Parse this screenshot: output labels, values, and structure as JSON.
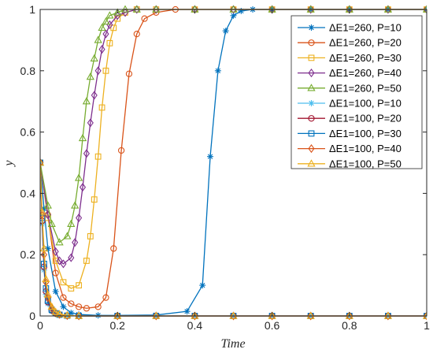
{
  "chart_data": {
    "type": "line",
    "xlabel": "Time",
    "ylabel": "y",
    "xlim": [
      0,
      1
    ],
    "ylim": [
      0,
      1
    ],
    "xticks": [
      0,
      0.2,
      0.4,
      0.6,
      0.8,
      1
    ],
    "xtick_labels": [
      "0",
      "0.2",
      "0.4",
      "0.6",
      "0.8",
      "1"
    ],
    "yticks": [
      0,
      0.2,
      0.4,
      0.6,
      0.8,
      1
    ],
    "ytick_labels": [
      "0",
      "0.2",
      "0.4",
      "0.6",
      "0.8",
      "1"
    ],
    "grid": false,
    "legend_position": "top-right",
    "series": [
      {
        "name": "ΔE1=260, P=10",
        "color": "#0072BD",
        "marker": "asterisk",
        "x": [
          0,
          0.01,
          0.02,
          0.04,
          0.06,
          0.08,
          0.1,
          0.15,
          0.2,
          0.3,
          0.38,
          0.42,
          0.44,
          0.46,
          0.48,
          0.5,
          0.52,
          0.55,
          0.6,
          0.7,
          0.8,
          0.9,
          1.0
        ],
        "y": [
          0.5,
          0.35,
          0.22,
          0.08,
          0.03,
          0.01,
          0.005,
          0.002,
          0.002,
          0.003,
          0.015,
          0.1,
          0.52,
          0.8,
          0.93,
          0.98,
          0.995,
          1,
          1,
          1,
          1,
          1,
          1
        ]
      },
      {
        "name": "ΔE1=260, P=20",
        "color": "#D95319",
        "marker": "circle",
        "x": [
          0,
          0.02,
          0.04,
          0.06,
          0.08,
          0.1,
          0.12,
          0.15,
          0.17,
          0.19,
          0.21,
          0.23,
          0.25,
          0.27,
          0.3,
          0.35,
          0.4,
          0.5,
          0.6,
          0.7,
          0.8,
          0.9,
          1.0
        ],
        "y": [
          0.5,
          0.33,
          0.14,
          0.06,
          0.04,
          0.03,
          0.025,
          0.03,
          0.06,
          0.22,
          0.54,
          0.79,
          0.92,
          0.97,
          0.99,
          1,
          1,
          1,
          1,
          1,
          1,
          1,
          1
        ]
      },
      {
        "name": "ΔE1=260, P=30",
        "color": "#EDB120",
        "marker": "square",
        "x": [
          0,
          0.02,
          0.04,
          0.06,
          0.08,
          0.1,
          0.12,
          0.13,
          0.14,
          0.15,
          0.16,
          0.17,
          0.18,
          0.19,
          0.2,
          0.22,
          0.25,
          0.3,
          0.4,
          0.5,
          0.6,
          0.7,
          0.8,
          0.9,
          1.0
        ],
        "y": [
          0.5,
          0.32,
          0.18,
          0.11,
          0.09,
          0.1,
          0.18,
          0.26,
          0.38,
          0.52,
          0.68,
          0.8,
          0.89,
          0.94,
          0.97,
          0.99,
          1,
          1,
          1,
          1,
          1,
          1,
          1,
          1,
          1
        ]
      },
      {
        "name": "ΔE1=260, P=40",
        "color": "#7E2F8E",
        "marker": "diamond",
        "x": [
          0,
          0.02,
          0.04,
          0.05,
          0.06,
          0.08,
          0.09,
          0.1,
          0.11,
          0.12,
          0.13,
          0.14,
          0.15,
          0.16,
          0.17,
          0.18,
          0.2,
          0.22,
          0.25,
          0.3,
          0.4,
          0.5,
          0.6,
          0.7,
          0.8,
          0.9,
          1.0
        ],
        "y": [
          0.5,
          0.33,
          0.21,
          0.18,
          0.17,
          0.19,
          0.24,
          0.32,
          0.42,
          0.53,
          0.63,
          0.72,
          0.8,
          0.87,
          0.92,
          0.95,
          0.98,
          0.99,
          1,
          1,
          1,
          1,
          1,
          1,
          1,
          1,
          1
        ]
      },
      {
        "name": "ΔE1=260, P=50",
        "color": "#77AC30",
        "marker": "triangle",
        "x": [
          0,
          0.02,
          0.03,
          0.05,
          0.07,
          0.08,
          0.09,
          0.1,
          0.11,
          0.12,
          0.13,
          0.14,
          0.15,
          0.16,
          0.17,
          0.18,
          0.2,
          0.22,
          0.25,
          0.3,
          0.4,
          0.5,
          0.6,
          0.7,
          0.8,
          0.9,
          1.0
        ],
        "y": [
          0.5,
          0.36,
          0.3,
          0.24,
          0.26,
          0.3,
          0.36,
          0.45,
          0.58,
          0.7,
          0.78,
          0.84,
          0.9,
          0.94,
          0.96,
          0.98,
          0.99,
          1,
          1,
          1,
          1,
          1,
          1,
          1,
          1,
          1,
          1
        ]
      },
      {
        "name": "ΔE1=100, P=10",
        "color": "#4DBEEE",
        "marker": "asterisk",
        "x": [
          0,
          0.005,
          0.01,
          0.015,
          0.02,
          0.03,
          0.04,
          0.05,
          0.07,
          0.1,
          0.2,
          0.3,
          0.4,
          0.5,
          0.6,
          0.7,
          0.8,
          0.9,
          1.0
        ],
        "y": [
          0.5,
          0.3,
          0.15,
          0.07,
          0.04,
          0.015,
          0.006,
          0.003,
          0.001,
          0,
          0,
          0,
          0,
          0,
          0,
          0,
          0,
          0,
          0
        ]
      },
      {
        "name": "ΔE1=100, P=20",
        "color": "#A2142F",
        "marker": "circle",
        "x": [
          0,
          0.005,
          0.01,
          0.015,
          0.02,
          0.03,
          0.04,
          0.05,
          0.07,
          0.1,
          0.2,
          0.3,
          0.4,
          0.5,
          0.6,
          0.7,
          0.8,
          0.9,
          1.0
        ],
        "y": [
          0.5,
          0.31,
          0.16,
          0.08,
          0.045,
          0.018,
          0.008,
          0.004,
          0.001,
          0,
          0,
          0,
          0,
          0,
          0,
          0,
          0,
          0,
          0
        ]
      },
      {
        "name": "ΔE1=100, P=30",
        "color": "#0072BD",
        "marker": "square",
        "x": [
          0,
          0.005,
          0.01,
          0.015,
          0.02,
          0.03,
          0.04,
          0.05,
          0.07,
          0.1,
          0.2,
          0.3,
          0.4,
          0.5,
          0.6,
          0.7,
          0.8,
          0.9,
          1.0
        ],
        "y": [
          0.5,
          0.32,
          0.17,
          0.09,
          0.05,
          0.02,
          0.009,
          0.004,
          0.001,
          0,
          0,
          0,
          0,
          0,
          0,
          0,
          0,
          0,
          0
        ]
      },
      {
        "name": "ΔE1=100, P=40",
        "color": "#D95319",
        "marker": "diamond",
        "x": [
          0,
          0.005,
          0.01,
          0.015,
          0.02,
          0.03,
          0.04,
          0.05,
          0.07,
          0.1,
          0.2,
          0.3,
          0.4,
          0.5,
          0.6,
          0.7,
          0.8,
          0.9,
          1.0
        ],
        "y": [
          0.5,
          0.33,
          0.2,
          0.11,
          0.06,
          0.025,
          0.011,
          0.005,
          0.001,
          0,
          0,
          0,
          0,
          0,
          0,
          0,
          0,
          0,
          0
        ]
      },
      {
        "name": "ΔE1=100, P=50",
        "color": "#EDB120",
        "marker": "triangle",
        "x": [
          0,
          0.005,
          0.01,
          0.015,
          0.02,
          0.03,
          0.04,
          0.05,
          0.07,
          0.1,
          0.2,
          0.3,
          0.4,
          0.5,
          0.6,
          0.7,
          0.8,
          0.9,
          1.0
        ],
        "y": [
          0.5,
          0.34,
          0.22,
          0.12,
          0.07,
          0.03,
          0.013,
          0.006,
          0.002,
          0,
          0,
          0,
          0,
          0,
          0,
          0,
          0,
          0,
          0
        ]
      }
    ]
  }
}
